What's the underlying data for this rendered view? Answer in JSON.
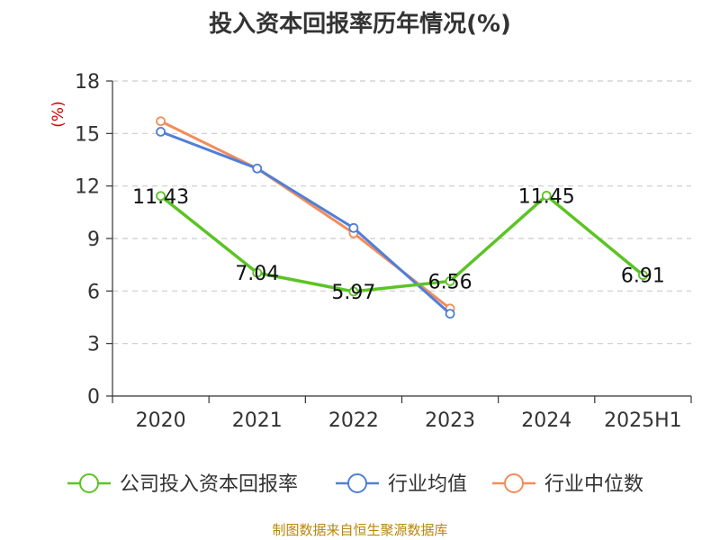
{
  "chart_data": {
    "type": "line",
    "title": "投入资本回报率历年情况(%)",
    "ylabel": "(%)",
    "categories": [
      "2020",
      "2021",
      "2022",
      "2023",
      "2024",
      "2025H1"
    ],
    "ylim": [
      0,
      18
    ],
    "yticks": [
      0,
      3,
      6,
      9,
      12,
      15,
      18
    ],
    "grid": true,
    "legend_position": "bottom",
    "series": [
      {
        "name": "公司投入资本回报率",
        "color": "#5bc424",
        "values": [
          11.43,
          7.04,
          5.97,
          6.56,
          11.45,
          6.91
        ],
        "labels": [
          "11.43",
          "7.04",
          "5.97",
          "6.56",
          "11.45",
          "6.91"
        ]
      },
      {
        "name": "行业均值",
        "color": "#4f7fd9",
        "values": [
          15.1,
          13.0,
          9.6,
          4.7,
          null,
          null
        ]
      },
      {
        "name": "行业中位数",
        "color": "#f28c5a",
        "values": [
          15.7,
          13.0,
          9.3,
          5.0,
          null,
          null
        ]
      }
    ],
    "source": "制图数据来自恒生聚源数据库"
  }
}
